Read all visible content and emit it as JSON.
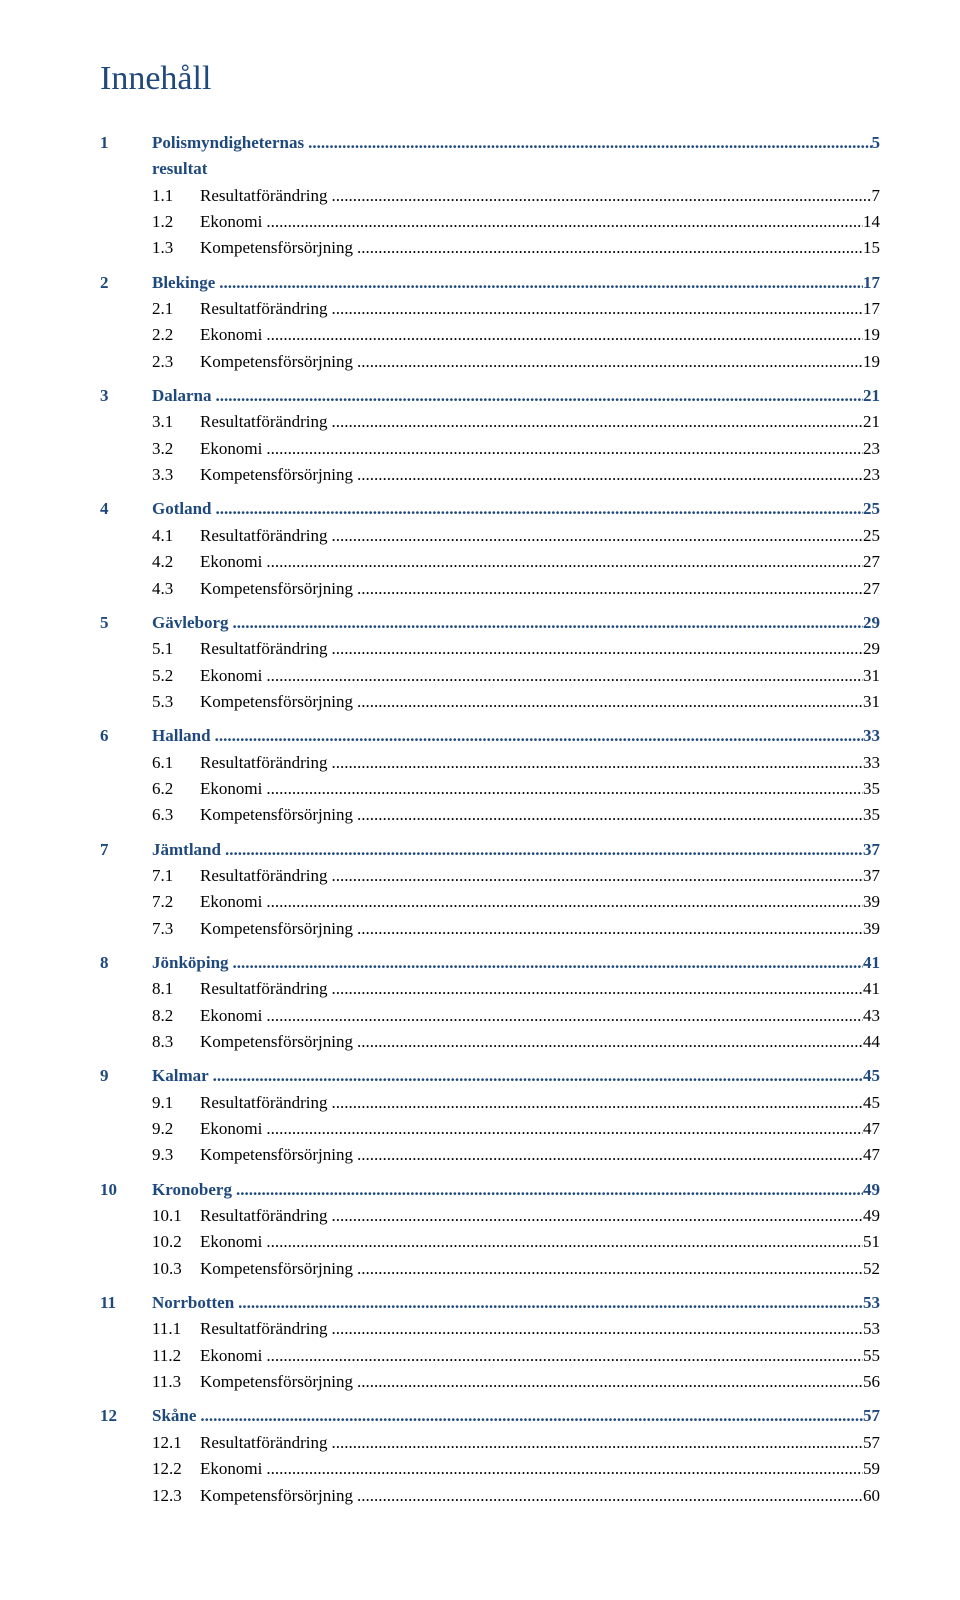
{
  "title": "Innehåll",
  "colors": {
    "heading": "#1f497d",
    "body": "#000000",
    "background": "#ffffff"
  },
  "leader_char": ".",
  "toc": [
    {
      "num": "1",
      "label": "Polismyndigheternas resultat",
      "page": "5",
      "level": 1
    },
    {
      "num": "1.1",
      "label": "Resultatförändring",
      "page": "7",
      "level": 2
    },
    {
      "num": "1.2",
      "label": "Ekonomi",
      "page": "14",
      "level": 2
    },
    {
      "num": "1.3",
      "label": "Kompetensförsörjning",
      "page": "15",
      "level": 2
    },
    {
      "num": "2",
      "label": "Blekinge",
      "page": "17",
      "level": 1
    },
    {
      "num": "2.1",
      "label": "Resultatförändring",
      "page": "17",
      "level": 2
    },
    {
      "num": "2.2",
      "label": "Ekonomi",
      "page": "19",
      "level": 2
    },
    {
      "num": "2.3",
      "label": "Kompetensförsörjning",
      "page": "19",
      "level": 2
    },
    {
      "num": "3",
      "label": "Dalarna",
      "page": "21",
      "level": 1
    },
    {
      "num": "3.1",
      "label": "Resultatförändring",
      "page": "21",
      "level": 2
    },
    {
      "num": "3.2",
      "label": "Ekonomi",
      "page": "23",
      "level": 2
    },
    {
      "num": "3.3",
      "label": "Kompetensförsörjning",
      "page": "23",
      "level": 2
    },
    {
      "num": "4",
      "label": "Gotland",
      "page": "25",
      "level": 1
    },
    {
      "num": "4.1",
      "label": "Resultatförändring",
      "page": "25",
      "level": 2
    },
    {
      "num": "4.2",
      "label": "Ekonomi",
      "page": "27",
      "level": 2
    },
    {
      "num": "4.3",
      "label": "Kompetensförsörjning",
      "page": "27",
      "level": 2
    },
    {
      "num": "5",
      "label": "Gävleborg",
      "page": "29",
      "level": 1
    },
    {
      "num": "5.1",
      "label": "Resultatförändring",
      "page": "29",
      "level": 2
    },
    {
      "num": "5.2",
      "label": "Ekonomi",
      "page": "31",
      "level": 2
    },
    {
      "num": "5.3",
      "label": "Kompetensförsörjning",
      "page": "31",
      "level": 2
    },
    {
      "num": "6",
      "label": "Halland",
      "page": "33",
      "level": 1
    },
    {
      "num": "6.1",
      "label": "Resultatförändring",
      "page": "33",
      "level": 2
    },
    {
      "num": "6.2",
      "label": "Ekonomi",
      "page": "35",
      "level": 2
    },
    {
      "num": "6.3",
      "label": "Kompetensförsörjning",
      "page": "35",
      "level": 2
    },
    {
      "num": "7",
      "label": "Jämtland",
      "page": "37",
      "level": 1
    },
    {
      "num": "7.1",
      "label": "Resultatförändring",
      "page": "37",
      "level": 2
    },
    {
      "num": "7.2",
      "label": "Ekonomi",
      "page": "39",
      "level": 2
    },
    {
      "num": "7.3",
      "label": "Kompetensförsörjning",
      "page": "39",
      "level": 2
    },
    {
      "num": "8",
      "label": "Jönköping",
      "page": "41",
      "level": 1
    },
    {
      "num": "8.1",
      "label": "Resultatförändring",
      "page": "41",
      "level": 2
    },
    {
      "num": "8.2",
      "label": "Ekonomi",
      "page": "43",
      "level": 2
    },
    {
      "num": "8.3",
      "label": "Kompetensförsörjning",
      "page": "44",
      "level": 2
    },
    {
      "num": "9",
      "label": "Kalmar",
      "page": "45",
      "level": 1
    },
    {
      "num": "9.1",
      "label": "Resultatförändring",
      "page": "45",
      "level": 2
    },
    {
      "num": "9.2",
      "label": "Ekonomi",
      "page": "47",
      "level": 2
    },
    {
      "num": "9.3",
      "label": "Kompetensförsörjning",
      "page": "47",
      "level": 2
    },
    {
      "num": "10",
      "label": "Kronoberg",
      "page": "49",
      "level": 1
    },
    {
      "num": "10.1",
      "label": "Resultatförändring",
      "page": "49",
      "level": 2
    },
    {
      "num": "10.2",
      "label": "Ekonomi",
      "page": "51",
      "level": 2
    },
    {
      "num": "10.3",
      "label": "Kompetensförsörjning",
      "page": "52",
      "level": 2
    },
    {
      "num": "11",
      "label": "Norrbotten",
      "page": "53",
      "level": 1
    },
    {
      "num": "11.1",
      "label": "Resultatförändring",
      "page": "53",
      "level": 2
    },
    {
      "num": "11.2",
      "label": "Ekonomi",
      "page": "55",
      "level": 2
    },
    {
      "num": "11.3",
      "label": "Kompetensförsörjning",
      "page": "56",
      "level": 2
    },
    {
      "num": "12",
      "label": "Skåne",
      "page": "57",
      "level": 1
    },
    {
      "num": "12.1",
      "label": "Resultatförändring",
      "page": "57",
      "level": 2
    },
    {
      "num": "12.2",
      "label": "Ekonomi",
      "page": "59",
      "level": 2
    },
    {
      "num": "12.3",
      "label": "Kompetensförsörjning",
      "page": "60",
      "level": 2
    }
  ]
}
